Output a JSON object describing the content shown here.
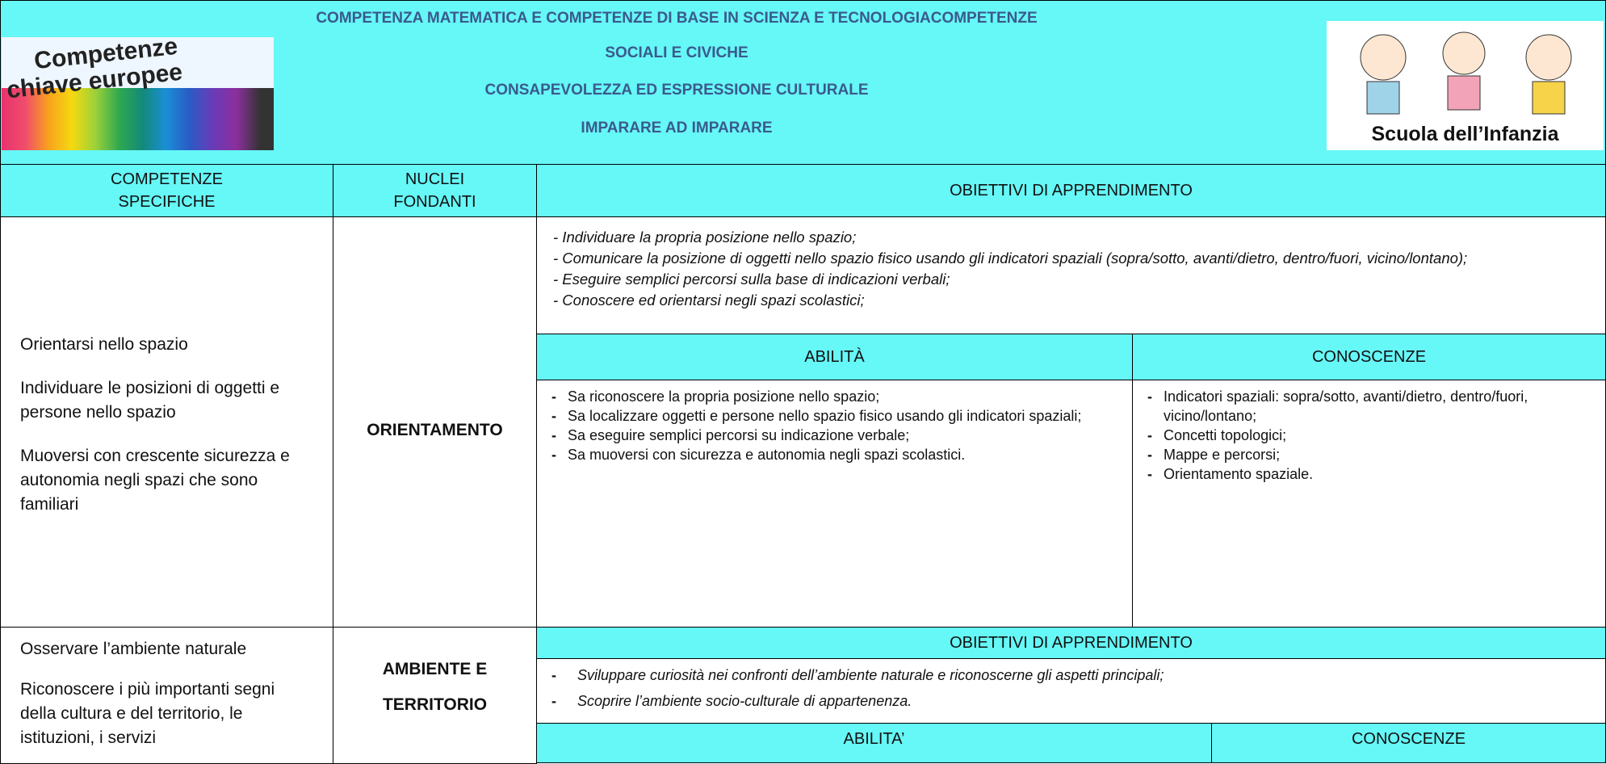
{
  "header": {
    "title_lines": [
      "COMPETENZA MATEMATICA E COMPETENZE DI BASE IN SCIENZA E TECNOLOGIACOMPETENZE",
      "SOCIALI E CIVICHE",
      "CONSAPEVOLEZZA ED ESPRESSIONE CULTURALE",
      "IMPARARE AD IMPARARE"
    ],
    "left_logo": [
      "Competenze",
      "chiave europee"
    ],
    "right_logo": "Scuola dell’Infanzia"
  },
  "table": {
    "bullet": "-",
    "columns": [
      "COMPETENZE SPECIFICHE",
      "NUCLEI FONDANTI",
      "OBIETTIVI DI APPRENDIMENTO"
    ],
    "sections": [
      {
        "competenze": [
          "Orientarsi nello spazio",
          "Individuare le posizioni di oggetti e persone nello spazio",
          "Muoversi con crescente sicurezza e autonomia negli spazi che sono familiari"
        ],
        "nucleo": [
          "ORIENTAMENTO"
        ],
        "obiettivi": [
          "- Individuare la propria posizione nello spazio;",
          "- Comunicare la posizione di oggetti nello spazio fisico usando gli indicatori spaziali (sopra/sotto, avanti/dietro, dentro/fuori, vicino/lontano);",
          "- Eseguire semplici percorsi sulla base di indicazioni verbali;",
          "- Conoscere ed orientarsi negli spazi scolastici;"
        ],
        "abilita_header": "ABILITÀ",
        "conoscenze_header": "CONOSCENZE",
        "abilita": [
          "Sa riconoscere la propria posizione nello spazio;",
          "Sa localizzare oggetti e persone nello spazio fisico usando gli indicatori spaziali;",
          "Sa eseguire semplici percorsi su indicazione verbale;",
          "Sa muoversi con sicurezza e autonomia negli spazi scolastici."
        ],
        "conoscenze": [
          "Indicatori spaziali: sopra/sotto, avanti/dietro, dentro/fuori, vicino/lontano;",
          "Concetti topologici;",
          "Mappe e percorsi;",
          "Orientamento spaziale."
        ]
      },
      {
        "competenze": [
          "Osservare l’ambiente naturale",
          "Riconoscere i più importanti segni della cultura e del territorio, le istituzioni, i servizi"
        ],
        "nucleo": [
          "AMBIENTE E",
          "TERRITORIO"
        ],
        "obiettivi_header": "OBIETTIVI DI APPRENDIMENTO",
        "obiettivi": [
          "Sviluppare curiosità nei confronti dell’ambiente naturale e riconoscerne gli aspetti principali;",
          "Scoprire l’ambiente socio-culturale di appartenenza."
        ],
        "abilita_header": "ABILITA’",
        "conoscenze_header": "CONOSCENZE"
      }
    ]
  }
}
